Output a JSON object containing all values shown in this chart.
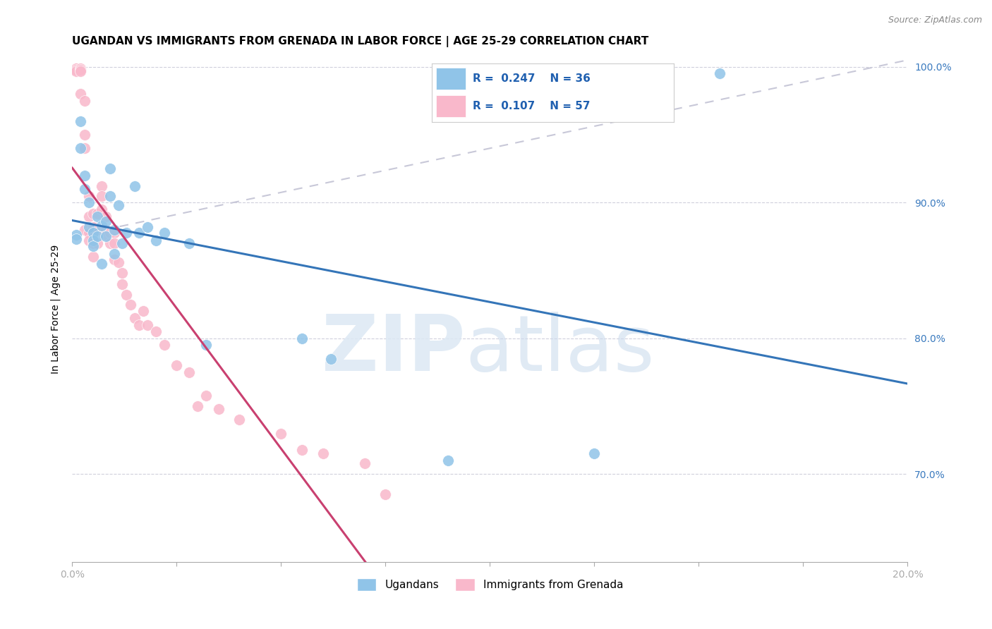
{
  "title": "UGANDAN VS IMMIGRANTS FROM GRENADA IN LABOR FORCE | AGE 25-29 CORRELATION CHART",
  "source": "Source: ZipAtlas.com",
  "ylabel": "In Labor Force | Age 25-29",
  "xlim": [
    0.0,
    0.2
  ],
  "ylim": [
    0.635,
    1.008
  ],
  "yticks": [
    0.7,
    0.8,
    0.9,
    1.0
  ],
  "yticklabels_right": [
    "70.0%",
    "80.0%",
    "90.0%",
    "100.0%"
  ],
  "xtick_positions": [
    0.0,
    0.025,
    0.05,
    0.075,
    0.1,
    0.125,
    0.15,
    0.175,
    0.2
  ],
  "xticklabels": [
    "0.0%",
    "",
    "",
    "",
    "",
    "",
    "",
    "",
    "20.0%"
  ],
  "legend_blue_r": "0.247",
  "legend_blue_n": "36",
  "legend_pink_r": "0.107",
  "legend_pink_n": "57",
  "legend_label_blue": "Ugandans",
  "legend_label_pink": "Immigrants from Grenada",
  "blue_color": "#90c4e8",
  "pink_color": "#f9b8cb",
  "blue_line_color": "#3475b8",
  "pink_line_color": "#c94070",
  "dashed_line_color": "#c8c8d8",
  "title_fontsize": 11,
  "axis_fontsize": 10,
  "tick_fontsize": 10,
  "blue_scatter_x": [
    0.001,
    0.001,
    0.002,
    0.002,
    0.003,
    0.003,
    0.004,
    0.004,
    0.005,
    0.005,
    0.005,
    0.006,
    0.006,
    0.007,
    0.007,
    0.008,
    0.008,
    0.009,
    0.009,
    0.01,
    0.01,
    0.011,
    0.012,
    0.013,
    0.015,
    0.016,
    0.018,
    0.02,
    0.022,
    0.028,
    0.032,
    0.055,
    0.062,
    0.09,
    0.125,
    0.155
  ],
  "blue_scatter_y": [
    0.876,
    0.873,
    0.96,
    0.94,
    0.92,
    0.91,
    0.9,
    0.882,
    0.878,
    0.872,
    0.868,
    0.89,
    0.875,
    0.883,
    0.855,
    0.886,
    0.875,
    0.925,
    0.905,
    0.88,
    0.862,
    0.898,
    0.87,
    0.878,
    0.912,
    0.878,
    0.882,
    0.872,
    0.878,
    0.87,
    0.795,
    0.8,
    0.785,
    0.71,
    0.715,
    0.995
  ],
  "pink_scatter_x": [
    0.0,
    0.001,
    0.001,
    0.001,
    0.001,
    0.002,
    0.002,
    0.002,
    0.002,
    0.003,
    0.003,
    0.003,
    0.003,
    0.004,
    0.004,
    0.004,
    0.004,
    0.005,
    0.005,
    0.005,
    0.005,
    0.006,
    0.006,
    0.006,
    0.007,
    0.007,
    0.007,
    0.008,
    0.008,
    0.008,
    0.009,
    0.009,
    0.01,
    0.01,
    0.01,
    0.011,
    0.012,
    0.012,
    0.013,
    0.014,
    0.015,
    0.016,
    0.017,
    0.018,
    0.02,
    0.022,
    0.025,
    0.028,
    0.03,
    0.032,
    0.035,
    0.04,
    0.05,
    0.055,
    0.06,
    0.07,
    0.075
  ],
  "pink_scatter_y": [
    0.998,
    0.999,
    0.999,
    0.998,
    0.997,
    0.999,
    0.998,
    0.997,
    0.98,
    0.975,
    0.95,
    0.94,
    0.88,
    0.905,
    0.89,
    0.878,
    0.872,
    0.892,
    0.882,
    0.87,
    0.86,
    0.892,
    0.88,
    0.87,
    0.912,
    0.905,
    0.895,
    0.89,
    0.88,
    0.876,
    0.878,
    0.87,
    0.878,
    0.87,
    0.858,
    0.856,
    0.848,
    0.84,
    0.832,
    0.825,
    0.815,
    0.81,
    0.82,
    0.81,
    0.805,
    0.795,
    0.78,
    0.775,
    0.75,
    0.758,
    0.748,
    0.74,
    0.73,
    0.718,
    0.715,
    0.708,
    0.685
  ],
  "dashed_line_x": [
    0.0,
    0.2
  ],
  "dashed_line_y": [
    0.875,
    1.005
  ]
}
